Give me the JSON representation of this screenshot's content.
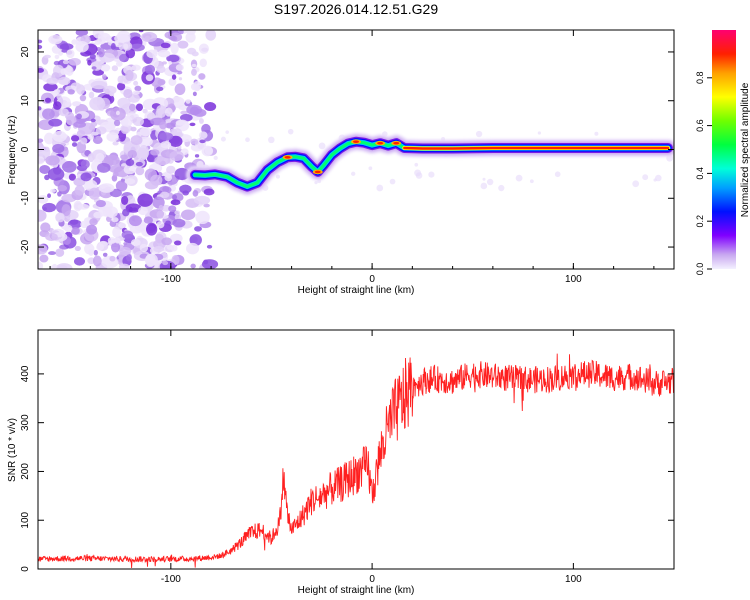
{
  "title": "S197.2026.014.12.51.G29",
  "chart_data": [
    {
      "type": "heatmap",
      "name": "spectrogram",
      "xlabel": "Height of straight line (km)",
      "ylabel": "Frequency (Hz)",
      "xlim": [
        -166,
        150
      ],
      "ylim": [
        -24.5,
        24.5
      ],
      "xticks": [
        -100,
        0,
        100
      ],
      "xtick_labels": [
        "-100",
        "0",
        "100"
      ],
      "yticks": [
        -20,
        -10,
        0,
        10,
        20
      ],
      "ytick_labels": [
        "-20",
        "-10",
        "0",
        "10",
        "20"
      ],
      "noise_region_x": [
        -166,
        -80
      ],
      "ridge": {
        "x": [
          -88,
          -83,
          -78,
          -72,
          -67,
          -62,
          -57,
          -52,
          -47,
          -42,
          -38,
          -34,
          -30,
          -27,
          -24,
          -20,
          -16,
          -12,
          -8,
          -4,
          0,
          4,
          8,
          12,
          16,
          25,
          40,
          60,
          80,
          100,
          120,
          140,
          147
        ],
        "y": [
          -5.2,
          -5.3,
          -5.1,
          -5.6,
          -6.8,
          -7.6,
          -6.8,
          -4.2,
          -2.6,
          -1.6,
          -1.5,
          -1.8,
          -3.5,
          -4.6,
          -3.2,
          -1.1,
          0.2,
          1.2,
          1.6,
          1.4,
          0.9,
          1.3,
          0.8,
          1.3,
          0.3,
          0.2,
          0.2,
          0.3,
          0.3,
          0.3,
          0.3,
          0.3,
          0.3
        ]
      },
      "colorbar": {
        "label": "Normalized spectral amplitude",
        "range": [
          0,
          1
        ],
        "ticks": [
          0.0,
          0.2,
          0.4,
          0.6,
          0.8
        ],
        "tick_labels": [
          "0.0",
          "0.2",
          "0.4",
          "0.6",
          "0.8"
        ]
      }
    },
    {
      "type": "line",
      "name": "snr",
      "xlabel": "Height of straight line (km)",
      "ylabel": "SNR (10 * v/v)",
      "xlim": [
        -166,
        150
      ],
      "ylim": [
        0,
        490
      ],
      "xticks": [
        -100,
        0,
        100
      ],
      "xtick_labels": [
        "-100",
        "0",
        "100"
      ],
      "yticks": [
        0,
        100,
        200,
        300,
        400
      ],
      "ytick_labels": [
        "0",
        "100",
        "200",
        "300",
        "400"
      ],
      "color": "#ff2020",
      "series": [
        {
          "name": "SNR",
          "x": [
            -166,
            -150,
            -130,
            -110,
            -90,
            -80,
            -75,
            -70,
            -65,
            -60,
            -55,
            -50,
            -46,
            -44,
            -42,
            -40,
            -35,
            -30,
            -25,
            -20,
            -15,
            -10,
            -5,
            -2,
            0,
            3,
            5,
            10,
            15,
            20,
            25,
            30,
            40,
            50,
            60,
            70,
            80,
            90,
            100,
            110,
            120,
            130,
            140,
            150
          ],
          "values": [
            20,
            22,
            21,
            20,
            21,
            24,
            27,
            38,
            55,
            75,
            80,
            62,
            95,
            190,
            110,
            80,
            105,
            140,
            150,
            165,
            175,
            190,
            205,
            210,
            150,
            215,
            250,
            310,
            345,
            375,
            385,
            390,
            385,
            400,
            395,
            390,
            388,
            390,
            398,
            400,
            392,
            395,
            380,
            385
          ]
        }
      ]
    }
  ]
}
